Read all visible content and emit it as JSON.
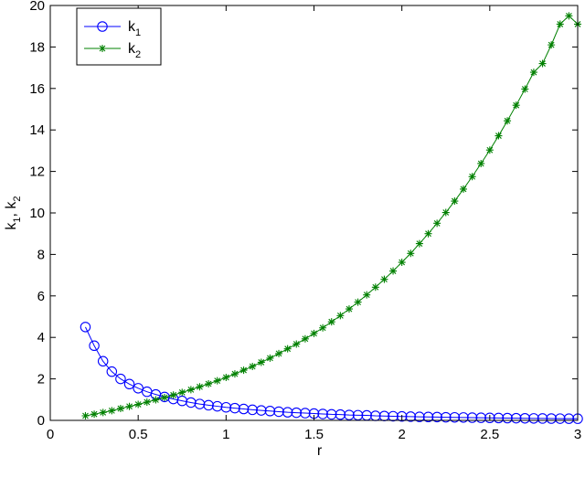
{
  "chart_data": {
    "type": "line",
    "title": "",
    "xlabel": "r",
    "ylabel": {
      "base": "k",
      "sub1": "1",
      "sep": ", ",
      "sub2": "2"
    },
    "xlim": [
      0,
      3
    ],
    "ylim": [
      0,
      20
    ],
    "x_ticks": [
      0,
      0.5,
      1,
      1.5,
      2,
      2.5,
      3
    ],
    "x_tick_labels": [
      "0",
      "0.5",
      "1",
      "1.5",
      "2",
      "2.5",
      "3"
    ],
    "y_ticks": [
      0,
      2,
      4,
      6,
      8,
      10,
      12,
      14,
      16,
      18,
      20
    ],
    "y_tick_labels": [
      "0",
      "2",
      "4",
      "6",
      "8",
      "10",
      "12",
      "14",
      "16",
      "18",
      "20"
    ],
    "grid": false,
    "legend_position": "top-left",
    "x": [
      0.2,
      0.25,
      0.3,
      0.35,
      0.4,
      0.45,
      0.5,
      0.55,
      0.6,
      0.65,
      0.7,
      0.75,
      0.8,
      0.85,
      0.9,
      0.95,
      1.0,
      1.05,
      1.1,
      1.15,
      1.2,
      1.25,
      1.3,
      1.35,
      1.4,
      1.45,
      1.5,
      1.55,
      1.6,
      1.65,
      1.7,
      1.75,
      1.8,
      1.85,
      1.9,
      1.95,
      2.0,
      2.05,
      2.1,
      2.15,
      2.2,
      2.25,
      2.3,
      2.35,
      2.4,
      2.45,
      2.5,
      2.55,
      2.6,
      2.65,
      2.7,
      2.75,
      2.8,
      2.85,
      2.9,
      2.95,
      3.0
    ],
    "series": [
      {
        "name": {
          "base": "k",
          "sub": "1"
        },
        "color": "#0000ff",
        "marker": "circle",
        "values": [
          4.5,
          3.6,
          2.85,
          2.35,
          2.0,
          1.75,
          1.55,
          1.38,
          1.25,
          1.13,
          1.03,
          0.94,
          0.86,
          0.79,
          0.73,
          0.68,
          0.63,
          0.59,
          0.55,
          0.51,
          0.48,
          0.45,
          0.42,
          0.39,
          0.37,
          0.35,
          0.33,
          0.31,
          0.29,
          0.28,
          0.26,
          0.25,
          0.24,
          0.22,
          0.21,
          0.2,
          0.19,
          0.18,
          0.17,
          0.165,
          0.16,
          0.15,
          0.145,
          0.14,
          0.13,
          0.125,
          0.12,
          0.115,
          0.11,
          0.105,
          0.1,
          0.096,
          0.092,
          0.088,
          0.085,
          0.082,
          0.08
        ]
      },
      {
        "name": {
          "base": "k",
          "sub": "2"
        },
        "color": "#008000",
        "marker": "asterisk",
        "values": [
          0.22,
          0.3,
          0.38,
          0.47,
          0.57,
          0.67,
          0.77,
          0.88,
          0.99,
          1.1,
          1.22,
          1.35,
          1.48,
          1.62,
          1.76,
          1.91,
          2.07,
          2.24,
          2.42,
          2.6,
          2.8,
          3.0,
          3.22,
          3.45,
          3.68,
          3.93,
          4.19,
          4.46,
          4.75,
          5.05,
          5.37,
          5.7,
          6.05,
          6.42,
          6.8,
          7.2,
          7.62,
          8.05,
          8.52,
          9.0,
          9.5,
          10.02,
          10.57,
          11.15,
          11.75,
          12.38,
          13.03,
          13.72,
          14.44,
          15.19,
          15.97,
          16.78,
          17.2,
          18.1,
          19.1,
          19.5,
          19.1
        ]
      }
    ]
  }
}
